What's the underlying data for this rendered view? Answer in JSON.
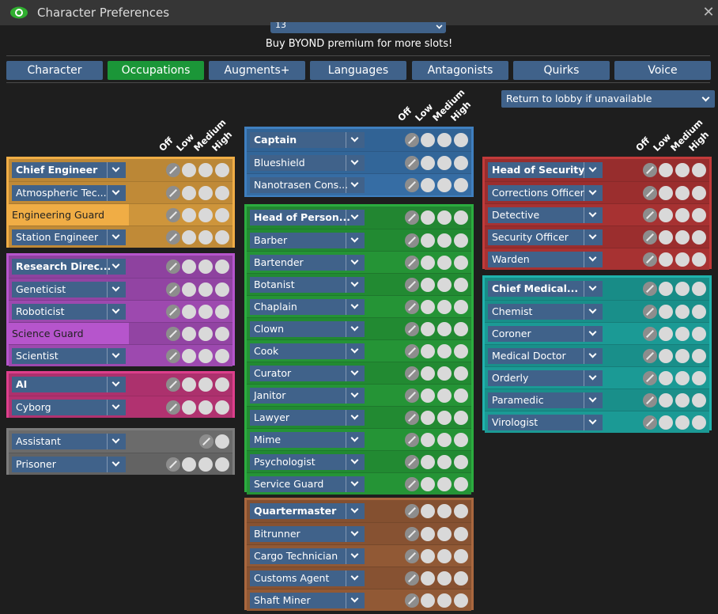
{
  "window": {
    "title": "Character Preferences",
    "close_label": "✕"
  },
  "slot_select": {
    "value": "13"
  },
  "premium_text": "Buy BYOND premium for more slots!",
  "tabs": [
    {
      "label": "Character",
      "active": false
    },
    {
      "label": "Occupations",
      "active": true
    },
    {
      "label": "Augments+",
      "active": false
    },
    {
      "label": "Languages",
      "active": false
    },
    {
      "label": "Antagonists",
      "active": false
    },
    {
      "label": "Quirks",
      "active": false
    },
    {
      "label": "Voice",
      "active": false
    }
  ],
  "lobby_option": "Return to lobby if unavailable",
  "priority_headers": [
    "Off",
    "Low",
    "Medium",
    "High"
  ],
  "departments": {
    "engineering": {
      "color": "#f0ad45",
      "jobs": [
        {
          "name": "Chief Engineer",
          "head": true,
          "dropdown": true
        },
        {
          "name": "Atmospheric Tec...",
          "dropdown": true
        },
        {
          "name": "Engineering Guard",
          "dropdown": false
        },
        {
          "name": "Station Engineer",
          "dropdown": true
        }
      ]
    },
    "science": {
      "color": "#b655cc",
      "jobs": [
        {
          "name": "Research Direc...",
          "head": true,
          "dropdown": true
        },
        {
          "name": "Geneticist",
          "dropdown": true
        },
        {
          "name": "Roboticist",
          "dropdown": true
        },
        {
          "name": "Science Guard",
          "dropdown": false
        },
        {
          "name": "Scientist",
          "dropdown": true
        }
      ]
    },
    "silicon": {
      "color": "#dd3f8c",
      "jobs": [
        {
          "name": "AI",
          "head": true,
          "dropdown": true
        },
        {
          "name": "Cyborg",
          "dropdown": true
        }
      ]
    },
    "misc": {
      "color": "#7c7c7c",
      "jobs": [
        {
          "name": "Assistant",
          "dropdown": true,
          "options": 2
        },
        {
          "name": "Prisoner",
          "dropdown": true
        }
      ]
    },
    "command": {
      "color": "#3f7fbf",
      "jobs": [
        {
          "name": "Captain",
          "head": true,
          "dropdown": true
        },
        {
          "name": "Blueshield",
          "dropdown": true
        },
        {
          "name": "Nanotrasen Cons...",
          "dropdown": true
        }
      ]
    },
    "service": {
      "color": "#2bac3f",
      "jobs": [
        {
          "name": "Head of Person...",
          "head": true,
          "dropdown": true
        },
        {
          "name": "Barber",
          "dropdown": true
        },
        {
          "name": "Bartender",
          "dropdown": true
        },
        {
          "name": "Botanist",
          "dropdown": true
        },
        {
          "name": "Chaplain",
          "dropdown": true
        },
        {
          "name": "Clown",
          "dropdown": true
        },
        {
          "name": "Cook",
          "dropdown": true
        },
        {
          "name": "Curator",
          "dropdown": true
        },
        {
          "name": "Janitor",
          "dropdown": true
        },
        {
          "name": "Lawyer",
          "dropdown": true
        },
        {
          "name": "Mime",
          "dropdown": true
        },
        {
          "name": "Psychologist",
          "dropdown": true
        },
        {
          "name": "Service Guard",
          "dropdown": true
        }
      ]
    },
    "cargo": {
      "color": "#a9673e",
      "jobs": [
        {
          "name": "Quartermaster",
          "head": true,
          "dropdown": true
        },
        {
          "name": "Bitrunner",
          "dropdown": true
        },
        {
          "name": "Cargo Technician",
          "dropdown": true
        },
        {
          "name": "Customs Agent",
          "dropdown": true
        },
        {
          "name": "Shaft Miner",
          "dropdown": true
        }
      ]
    },
    "security": {
      "color": "#c23a3a",
      "jobs": [
        {
          "name": "Head of Security",
          "head": true,
          "dropdown": true
        },
        {
          "name": "Corrections Officer",
          "dropdown": true
        },
        {
          "name": "Detective",
          "dropdown": true
        },
        {
          "name": "Security Officer",
          "dropdown": true
        },
        {
          "name": "Warden",
          "dropdown": true
        }
      ]
    },
    "medical": {
      "color": "#1fb3ad",
      "jobs": [
        {
          "name": "Chief Medical...",
          "head": true,
          "dropdown": true
        },
        {
          "name": "Chemist",
          "dropdown": true
        },
        {
          "name": "Coroner",
          "dropdown": true
        },
        {
          "name": "Medical Doctor",
          "dropdown": true
        },
        {
          "name": "Orderly",
          "dropdown": true
        },
        {
          "name": "Paramedic",
          "dropdown": true
        },
        {
          "name": "Virologist",
          "dropdown": true
        }
      ]
    }
  },
  "icons": {
    "eye": "eye-icon",
    "close": "close-icon",
    "chevron": "chevron-down-icon",
    "off": "off-slash-icon"
  }
}
